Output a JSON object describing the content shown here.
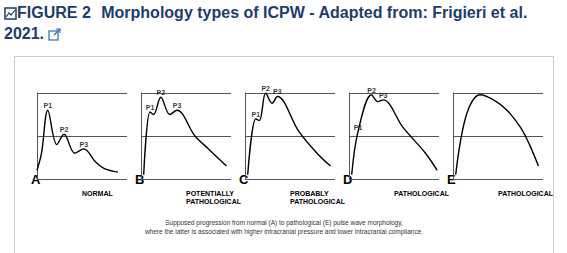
{
  "header": {
    "label": "FIGURE 2",
    "title": "Morphology types of ICPW - Adapted from: Frigieri et al. 2021."
  },
  "caption_lines": [
    "Supposed progression from normal (A) to pathological (E) pulse wave morphology,",
    "where the latter is associated with higher intracranial pressure and lower intracranial compliance."
  ],
  "chart_data": [
    {
      "type": "line",
      "title": "A",
      "xlabel": "NORMAL",
      "color": "#000000",
      "x": [
        0,
        0.5,
        1.2,
        2.2,
        3,
        4.2,
        5.2,
        6.5,
        7.5,
        9
      ],
      "values": [
        10,
        30,
        80,
        40,
        52,
        30,
        35,
        20,
        12,
        8
      ],
      "annotations": [
        {
          "text": "P1",
          "x": 1.2,
          "y": 80
        },
        {
          "text": "P2",
          "x": 3,
          "y": 52
        },
        {
          "text": "P3",
          "x": 5.2,
          "y": 35
        }
      ],
      "xlim": [
        0,
        10
      ],
      "ylim": [
        0,
        100
      ],
      "xticks": [],
      "yticks": [
        0,
        50,
        100
      ],
      "grid": true,
      "tick_labels": false
    },
    {
      "type": "line",
      "title": "B",
      "xlabel": "POTENTIALLY\nPATHOLOGICAL",
      "color": "#000000",
      "x": [
        0.3,
        1,
        1.4,
        2.2,
        3.2,
        4,
        6,
        7.5,
        9.5
      ],
      "values": [
        5,
        78,
        75,
        95,
        75,
        80,
        50,
        35,
        15
      ],
      "annotations": [
        {
          "text": "P1",
          "x": 1,
          "y": 78
        },
        {
          "text": "P2",
          "x": 2.2,
          "y": 95
        },
        {
          "text": "P3",
          "x": 4,
          "y": 80
        }
      ],
      "xlim": [
        0,
        10
      ],
      "ylim": [
        0,
        100
      ],
      "xticks": [],
      "yticks": [
        0,
        50,
        100
      ],
      "grid": true,
      "tick_labels": false
    },
    {
      "type": "line",
      "title": "C",
      "xlabel": "PROBABLY\nPATHOLOGICAL",
      "color": "#000000",
      "x": [
        0.3,
        1.2,
        1.6,
        2.3,
        3,
        3.6,
        6,
        8,
        9.5
      ],
      "values": [
        5,
        70,
        68,
        100,
        88,
        96,
        55,
        30,
        15
      ],
      "annotations": [
        {
          "text": "P1",
          "x": 1.2,
          "y": 70
        },
        {
          "text": "P2",
          "x": 2.3,
          "y": 100
        },
        {
          "text": "P3",
          "x": 3.6,
          "y": 96
        }
      ],
      "xlim": [
        0,
        10
      ],
      "ylim": [
        0,
        100
      ],
      "xticks": [],
      "yticks": [
        0,
        50,
        100
      ],
      "grid": true,
      "tick_labels": false
    },
    {
      "type": "line",
      "title": "D",
      "xlabel": "PATHOLOGICAL",
      "color": "#000000",
      "x": [
        0.3,
        1,
        2.5,
        3.2,
        3.8,
        6,
        8.5,
        9.8
      ],
      "values": [
        5,
        55,
        98,
        90,
        92,
        60,
        30,
        10
      ],
      "annotations": [
        {
          "text": "P1",
          "x": 1,
          "y": 55
        },
        {
          "text": "P2",
          "x": 2.5,
          "y": 98
        },
        {
          "text": "P3",
          "x": 3.8,
          "y": 92
        }
      ],
      "xlim": [
        0,
        10
      ],
      "ylim": [
        0,
        100
      ],
      "xticks": [],
      "yticks": [
        0,
        50,
        100
      ],
      "grid": true,
      "tick_labels": false
    },
    {
      "type": "line",
      "title": "E",
      "xlabel": "PATHOLOGICAL",
      "color": "#000000",
      "x": [
        0.3,
        1.5,
        3,
        4.5,
        6,
        7.5,
        8.5,
        9.5
      ],
      "values": [
        5,
        75,
        98,
        92,
        80,
        60,
        40,
        15
      ],
      "annotations": [],
      "xlim": [
        0,
        10
      ],
      "ylim": [
        0,
        100
      ],
      "xticks": [],
      "yticks": [
        0,
        50,
        100
      ],
      "grid": true,
      "tick_labels": false
    }
  ]
}
